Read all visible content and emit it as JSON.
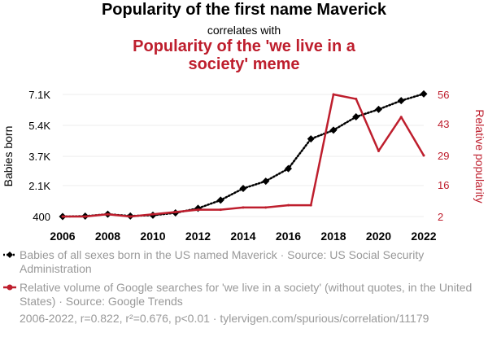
{
  "title": "Popularity of the first name Maverick",
  "subtitle": "correlates with",
  "title2": "Popularity of the 'we live in a society' meme",
  "colors": {
    "series1": "#000000",
    "series2": "#be1e2d",
    "grid": "#eeeeee",
    "text": "#000000",
    "muted": "#999999"
  },
  "chart_data": {
    "type": "line",
    "x": [
      2006,
      2007,
      2008,
      2009,
      2010,
      2011,
      2012,
      2013,
      2014,
      2015,
      2016,
      2017,
      2018,
      2019,
      2020,
      2021,
      2022
    ],
    "xticks": [
      "2006",
      "2008",
      "2010",
      "2012",
      "2014",
      "2016",
      "2018",
      "2020",
      "2022"
    ],
    "series": [
      {
        "name": "Babies of all sexes born in the US named Maverick",
        "axis": "left",
        "style": "dotted",
        "marker": "diamond",
        "values": [
          400,
          420,
          530,
          430,
          470,
          600,
          850,
          1300,
          1940,
          2340,
          3030,
          4660,
          5140,
          5870,
          6280,
          6760,
          7130
        ]
      },
      {
        "name": "Relative volume of Google searches for 'we live in a society'",
        "axis": "right",
        "style": "solid",
        "marker": "circle",
        "values": [
          2,
          2,
          3,
          2,
          3,
          4,
          5,
          5,
          6,
          6,
          7,
          7,
          56,
          54,
          31,
          46,
          29
        ]
      }
    ],
    "yleft": {
      "label": "Babies born",
      "ticks": [
        "400",
        "2.1K",
        "3.7K",
        "5.4K",
        "7.1K"
      ],
      "tickValues": [
        400,
        2100,
        3700,
        5400,
        7100
      ],
      "range": [
        400,
        7100
      ]
    },
    "yright": {
      "label": "Relative popularity",
      "ticks": [
        "2",
        "16",
        "29",
        "43",
        "56"
      ],
      "tickValues": [
        2,
        16,
        29,
        43,
        56
      ],
      "range": [
        2,
        56
      ]
    },
    "xlim": [
      2006,
      2022
    ]
  },
  "legend": {
    "item1": "Babies of all sexes born in the US named Maverick · Source: US Social Security Administration",
    "item2": "Relative volume of Google searches for 'we live in a society' (without quotes, in the United States) · Source: Google Trends"
  },
  "footer": "2006-2022, r=0.822, r²=0.676, p<0.01 · tylervigen.com/spurious/correlation/11179"
}
